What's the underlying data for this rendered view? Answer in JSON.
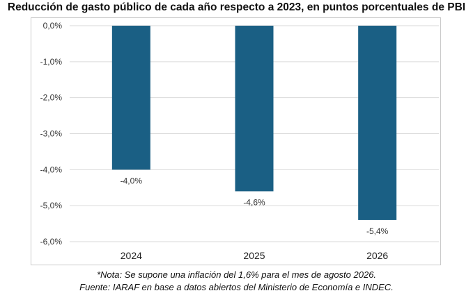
{
  "title": "Reducción de gasto público de cada año respecto a 2023, en puntos porcentuales de PBI",
  "note_line1": "*Nota: Se supone una inflación del 1,6% para el mes de agosto 2026.",
  "note_line2": "Fuente: IARAF en base a datos abiertos del Ministerio de Economía e INDEC.",
  "colors": {
    "bar": "#1a5f84",
    "grid": "#d9d9d9"
  },
  "chart_data": {
    "type": "bar",
    "categories": [
      "2024",
      "2025",
      "2026"
    ],
    "values": [
      -4.0,
      -4.6,
      -5.4
    ],
    "value_labels": [
      "-4,0%",
      "-4,6%",
      "-5,4%"
    ],
    "ylim": [
      -6,
      0
    ],
    "yticks": [
      0,
      -1,
      -2,
      -3,
      -4,
      -5,
      -6
    ],
    "ytick_labels": [
      "0,0%",
      "-1,0%",
      "-2,0%",
      "-3,0%",
      "-4,0%",
      "-5,0%",
      "-6,0%"
    ],
    "grid": true,
    "xlabel": "",
    "ylabel": ""
  }
}
